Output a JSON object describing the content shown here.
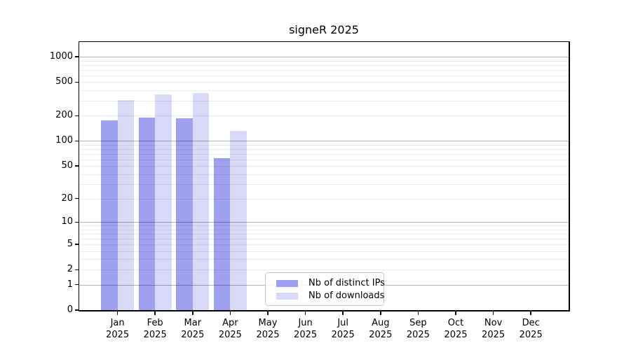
{
  "chart_data": {
    "type": "bar",
    "title": "signeR 2025",
    "categories": [
      "Jan",
      "Feb",
      "Mar",
      "Apr",
      "May",
      "Jun",
      "Jul",
      "Aug",
      "Sep",
      "Oct",
      "Nov",
      "Dec"
    ],
    "year_label": "2025",
    "series": [
      {
        "name": "Nb of distinct IPs",
        "color": "#a0a0f0",
        "values": [
          175,
          190,
          185,
          62,
          null,
          null,
          null,
          null,
          null,
          null,
          null,
          null
        ]
      },
      {
        "name": "Nb of downloads",
        "color": "#d9d9f8",
        "values": [
          305,
          360,
          368,
          133,
          null,
          null,
          null,
          null,
          null,
          null,
          null,
          null
        ]
      }
    ],
    "y_axis": {
      "scale": "log1p",
      "max": 1500,
      "ticks": [
        0,
        1,
        2,
        5,
        10,
        20,
        50,
        100,
        200,
        500,
        1000
      ],
      "major_gridlines": [
        1,
        10,
        100,
        1000
      ],
      "minor_gridlines": [
        2,
        3,
        4,
        5,
        6,
        7,
        8,
        9,
        20,
        30,
        40,
        50,
        60,
        70,
        80,
        90,
        200,
        300,
        400,
        500,
        600,
        700,
        800,
        900
      ]
    },
    "legend_position": "lower-center",
    "colors": {
      "spine": "#000000",
      "major_grid": "rgba(0,0,0,0.30)",
      "minor_grid": "rgba(0,0,0,0.08)",
      "background": "#ffffff"
    }
  }
}
